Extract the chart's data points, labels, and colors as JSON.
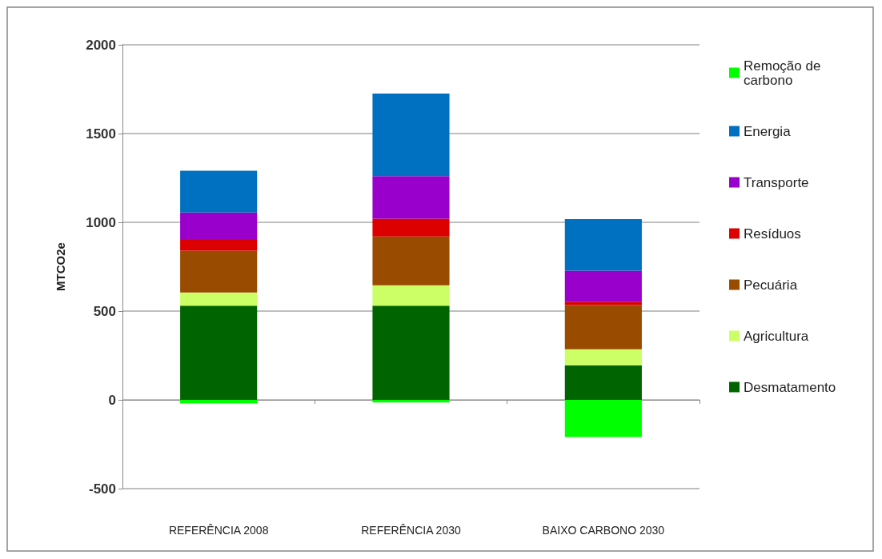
{
  "chart_data": {
    "type": "bar",
    "ylabel": "MTCO2e",
    "categories": [
      "REFERÊNCIA 2008",
      "REFERÊNCIA 2030",
      "BAIXO CARBONO 2030"
    ],
    "stacked": true,
    "ylim": [
      -500,
      2000
    ],
    "yticks": [
      -500,
      0,
      500,
      1000,
      1500,
      2000
    ],
    "grid": "y",
    "legend": "right",
    "series": [
      {
        "name": "Desmatamento",
        "color": "#006400",
        "values": [
          530,
          530,
          195
        ]
      },
      {
        "name": "Agricultura",
        "color": "#ccff66",
        "values": [
          75,
          115,
          90
        ]
      },
      {
        "name": "Pecuária",
        "color": "#994c00",
        "values": [
          235,
          275,
          250
        ]
      },
      {
        "name": "Resíduos",
        "color": "#dd0000",
        "values": [
          65,
          100,
          18
        ]
      },
      {
        "name": "Transporte",
        "color": "#9900cc",
        "values": [
          150,
          240,
          175
        ]
      },
      {
        "name": "Energia",
        "color": "#0070c0",
        "values": [
          235,
          465,
          290
        ]
      },
      {
        "name": "Remoção de carbono",
        "color": "#00ff00",
        "values": [
          -20,
          -15,
          -210
        ]
      }
    ]
  }
}
